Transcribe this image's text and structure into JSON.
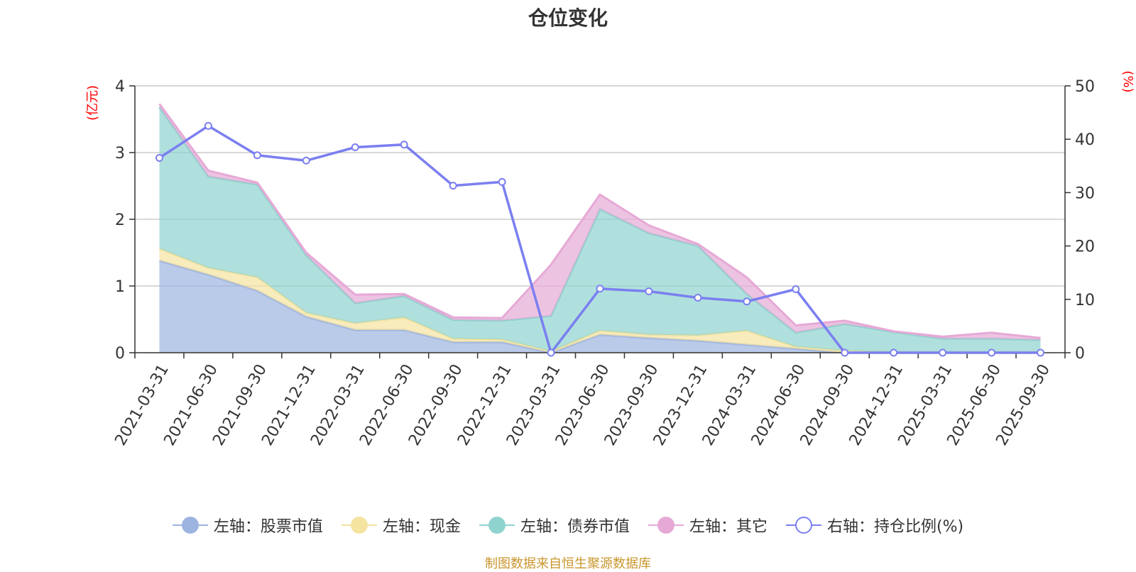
{
  "chart_data": {
    "type": "area",
    "title": "仓位变化",
    "left_axis_unit": "(亿元)",
    "right_axis_unit": "(%)",
    "categories": [
      "2021-03-31",
      "2021-06-30",
      "2021-09-30",
      "2021-12-31",
      "2022-03-31",
      "2022-06-30",
      "2022-09-30",
      "2022-12-31",
      "2023-03-31",
      "2023-06-30",
      "2023-09-30",
      "2023-12-31",
      "2024-03-31",
      "2024-06-30",
      "2024-09-30",
      "2024-12-31",
      "2025-03-31",
      "2025-06-30",
      "2025-09-30"
    ],
    "left_ylim": [
      0,
      4
    ],
    "left_yticks": [
      0,
      1,
      2,
      3,
      4
    ],
    "right_ylim": [
      0,
      50
    ],
    "right_yticks": [
      0,
      10,
      20,
      30,
      40,
      50
    ],
    "grid": true,
    "legend_position": "bottom",
    "stacked_series": [
      {
        "name": "左轴：股票市值",
        "axis": "left",
        "color": "#9db4e0",
        "values": [
          1.38,
          1.17,
          0.93,
          0.54,
          0.34,
          0.34,
          0.16,
          0.16,
          0.0,
          0.27,
          0.22,
          0.18,
          0.12,
          0.06,
          0.0,
          0.0,
          0.0,
          0.0,
          0.0
        ]
      },
      {
        "name": "左轴：现金",
        "axis": "left",
        "color": "#f5e3a0",
        "values": [
          0.18,
          0.1,
          0.2,
          0.06,
          0.1,
          0.19,
          0.05,
          0.04,
          0.02,
          0.06,
          0.05,
          0.08,
          0.21,
          0.03,
          0.03,
          0.01,
          0.01,
          0.01,
          0.01
        ]
      },
      {
        "name": "左轴：债券市值",
        "axis": "left",
        "color": "#8fd3cf",
        "values": [
          2.12,
          1.37,
          1.39,
          0.86,
          0.3,
          0.32,
          0.28,
          0.28,
          0.53,
          1.82,
          1.52,
          1.34,
          0.55,
          0.21,
          0.4,
          0.3,
          0.2,
          0.2,
          0.18
        ]
      },
      {
        "name": "左轴：其它",
        "axis": "left",
        "color": "#e6a9d6",
        "values": [
          0.05,
          0.09,
          0.03,
          0.04,
          0.13,
          0.03,
          0.04,
          0.04,
          0.77,
          0.22,
          0.12,
          0.03,
          0.25,
          0.11,
          0.05,
          0.01,
          0.03,
          0.09,
          0.03
        ]
      }
    ],
    "line_series": {
      "name": "右轴：持仓比例(%)",
      "axis": "right",
      "color": "#7b7ff0",
      "values": [
        36.5,
        42.5,
        37.0,
        36.0,
        38.5,
        39.0,
        31.3,
        32.0,
        0.0,
        12.0,
        11.5,
        10.3,
        9.6,
        11.9,
        0.0,
        0.0,
        0.0,
        0.0,
        0.0
      ]
    }
  },
  "legend": [
    {
      "label": "左轴：股票市值",
      "color": "#9db4e0",
      "hollow": false
    },
    {
      "label": "左轴：现金",
      "color": "#f5e3a0",
      "hollow": false
    },
    {
      "label": "左轴：债券市值",
      "color": "#8fd3cf",
      "hollow": false
    },
    {
      "label": "左轴：其它",
      "color": "#e6a9d6",
      "hollow": false
    },
    {
      "label": "右轴：持仓比例(%)",
      "color": "#7b7ff0",
      "hollow": true
    }
  ],
  "source_note": "制图数据来自恒生聚源数据库"
}
